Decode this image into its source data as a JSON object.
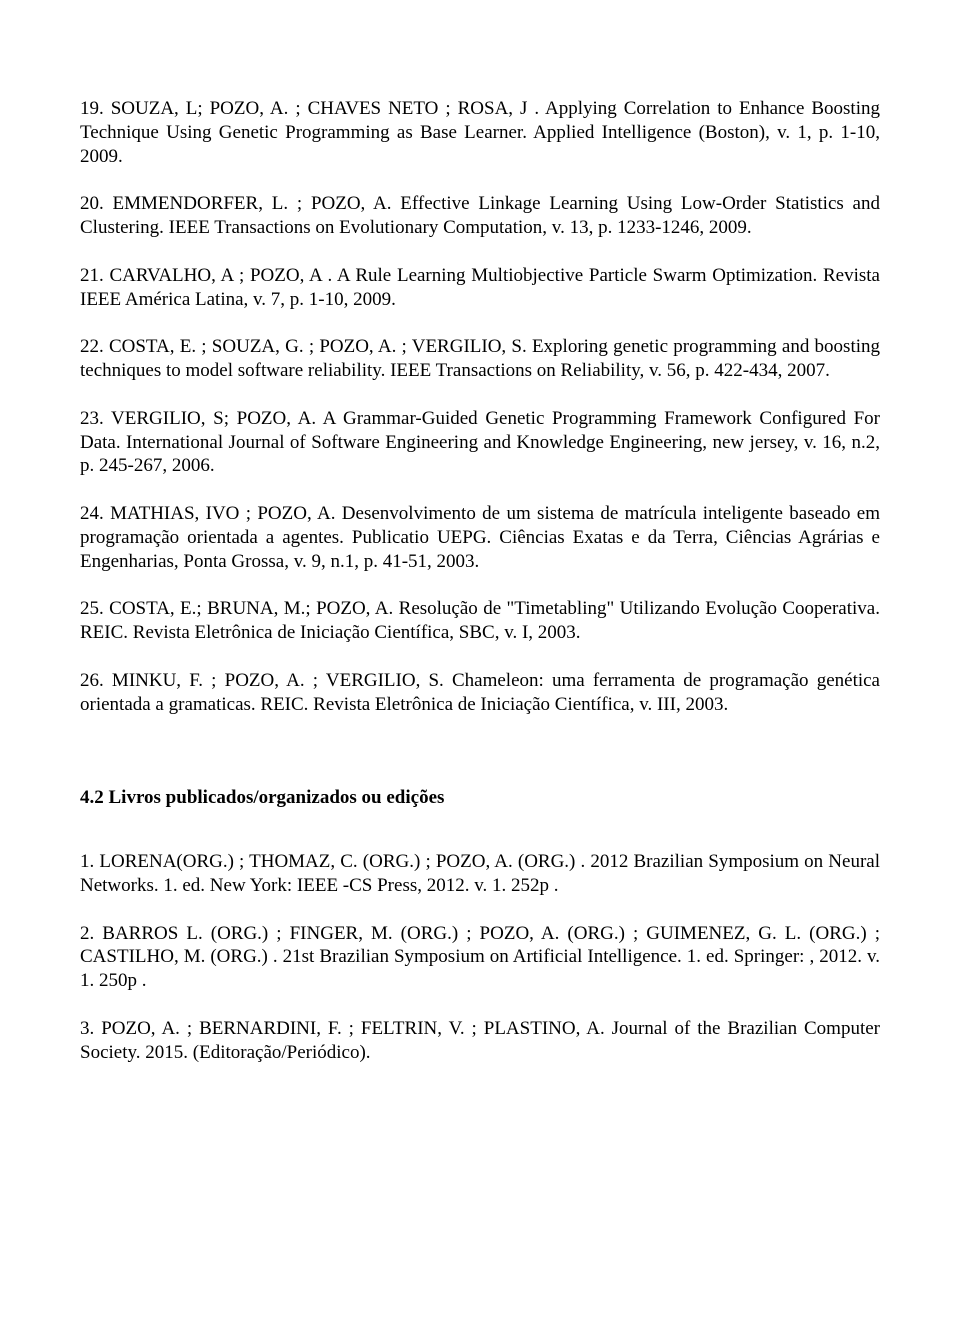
{
  "entries_1": [
    "19. SOUZA,  L;  POZO,  A. ;  CHAVES  NETO ;  ROSA,  J .  Applying  Correlation  to Enhance  Boosting  Technique  Using  Genetic  Programming  as  Base  Learner.  Applied Intelligence (Boston), v. 1, p. 1-10, 2009.",
    "20.  EMMENDORFER, L.  ; POZO, A.  Effective  Linkage  Learning  Using  Low-Order Statistics  and  Clustering.  IEEE  Transactions  on  Evolutionary  Computation,  v.  13,  p. 1233-1246, 2009.",
    "21.  CARVALHO,  A  ; POZO,  A .  A  Rule  Learning  Multiobjective  Particle  Swarm Optimization. Revista IEEE América Latina, v. 7, p. 1-10, 2009.",
    "22.  COSTA, E.  ; SOUZA, G. ; POZO, A. ; VERGILIO, S.  Exploring genetic programming and boosting techniques to model software reliability. IEEE Transactions on Reliability, v. 56, p. 422-434, 2007.",
    "23.  VERGILIO,  S;  POZO,  A.  A  Grammar-Guided  Genetic  Programming  Framework Configured  For  Data.  International  Journal  of  Software  Engineering  and  Knowledge Engineering, new jersey, v. 16, n.2, p. 245-267, 2006.",
    "24.  MATHIAS,  IVO  ; POZO,  A.  Desenvolvimento  de  um  sistema  de  matrícula inteligente  baseado  em  programação  orientada  a  agentes.  Publicatio  UEPG.  Ciências Exatas e da Terra, Ciências Agrárias e Engenharias, Ponta Grossa, v. 9, n.1, p. 41-51, 2003.",
    "25.  COSTA,  E.;  BRUNA,  M.;  POZO,  A.  Resolução  de  \"Timetabling\"  Utilizando Evolução Cooperativa. REIC. Revista Eletrônica de Iniciação Científica, SBC, v. I, 2003.",
    "26. MINKU, F. ; POZO, A. ; VERGILIO, S. Chameleon: uma ferramenta de programação genética orientada a gramaticas. REIC. Revista Eletrônica de Iniciação Científica, v. III, 2003."
  ],
  "section_heading": "4.2 Livros publicados/organizados ou edições",
  "entries_2": [
    "1.  LORENA(ORG.)  ;  THOMAZ,  C.  (ORG.)  ; POZO,  A.  (ORG.) .  2012  Brazilian Symposium on Neural Networks. 1. ed. New York: IEEE -CS Press, 2012. v. 1. 252p .",
    "2. BARROS L. (ORG.) ; FINGER, M. (ORG.) ; POZO, A. (ORG.) ; GUIMENEZ, G. L. (ORG.) ; CASTILHO, M. (ORG.) . 21st Brazilian Symposium on Artificial Intelligence. 1. ed. Springer: , 2012. v. 1. 250p .",
    "3.  POZO,  A.  ;  BERNARDINI,  F.  ;  FELTRIN,  V.  ;  PLASTINO,  A.  Journal  of  the Brazilian Computer Society. 2015. (Editoração/Periódico)."
  ]
}
